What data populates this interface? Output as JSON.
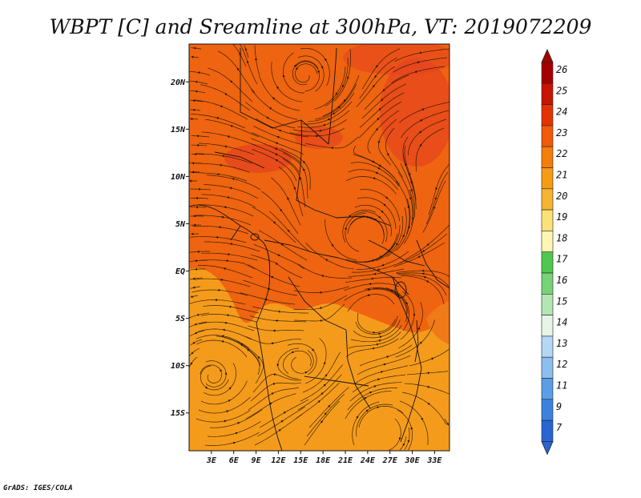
{
  "title": "WBPT [C] and Sreamline at 300hPa, VT: 2019072209",
  "credit": "GrADS: IGES/COLA",
  "map": {
    "lon_range": [
      0,
      35
    ],
    "lat_range": [
      -19,
      24
    ],
    "lat_ticks": [
      {
        "value": 20,
        "label": "20N"
      },
      {
        "value": 15,
        "label": "15N"
      },
      {
        "value": 10,
        "label": "10N"
      },
      {
        "value": 5,
        "label": "5N"
      },
      {
        "value": 0,
        "label": "EQ"
      },
      {
        "value": -5,
        "label": "5S"
      },
      {
        "value": -10,
        "label": "10S"
      },
      {
        "value": -15,
        "label": "15S"
      }
    ],
    "lon_ticks": [
      {
        "value": 3,
        "label": "3E"
      },
      {
        "value": 6,
        "label": "6E"
      },
      {
        "value": 9,
        "label": "9E"
      },
      {
        "value": 12,
        "label": "12E"
      },
      {
        "value": 15,
        "label": "15E"
      },
      {
        "value": 18,
        "label": "18E"
      },
      {
        "value": 21,
        "label": "21E"
      },
      {
        "value": 24,
        "label": "24E"
      },
      {
        "value": 27,
        "label": "27E"
      },
      {
        "value": 30,
        "label": "30E"
      },
      {
        "value": 33,
        "label": "33E"
      }
    ]
  },
  "colorbar": {
    "labels": [
      "26",
      "25",
      "24",
      "23",
      "22",
      "21",
      "20",
      "19",
      "18",
      "17",
      "16",
      "15",
      "14",
      "13",
      "12",
      "11",
      "9",
      "7"
    ],
    "colors": [
      "#a50000",
      "#c81400",
      "#e63200",
      "#f05a0a",
      "#f57d0a",
      "#f59b14",
      "#f5b432",
      "#fae178",
      "#fff5b4",
      "#50c850",
      "#78d278",
      "#b4e6b4",
      "#e6f5e6",
      "#b4d7f5",
      "#8cbef0",
      "#5a9ee6",
      "#3c82dc",
      "#2864d2"
    ]
  },
  "colors": {
    "north_field": "#ef6410",
    "hot_patch": "#e6451e",
    "south_field": "#f59b1c",
    "streamline": "#1a1200"
  }
}
